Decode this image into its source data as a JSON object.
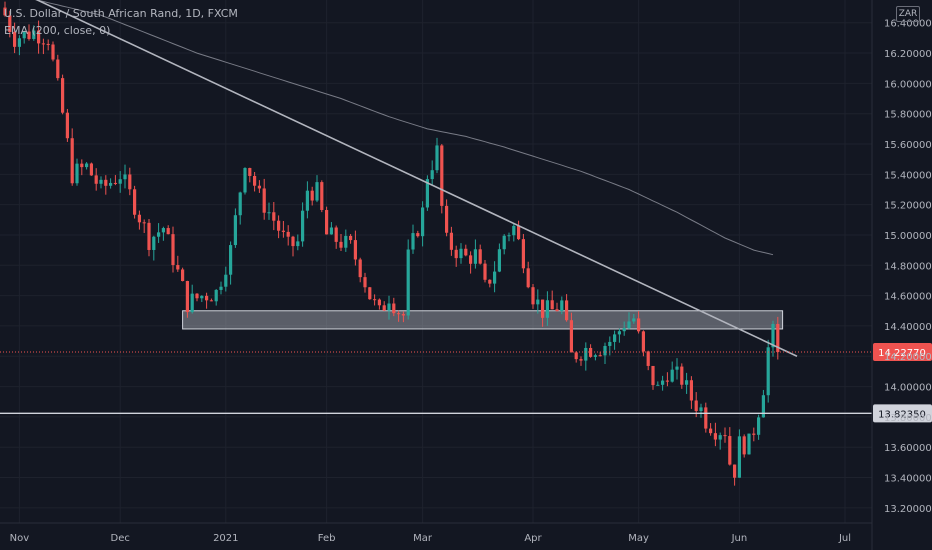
{
  "header": {
    "symbol_line": "U.S. Dollar / South African Rand, 1D, FXCM",
    "indicator_line": "EMA (200, close, 0)",
    "currency_badge": "ZAR"
  },
  "chart_data": {
    "type": "candlestick",
    "ylim": [
      13.1,
      16.55
    ],
    "y_ticks": [
      "16.40000",
      "16.20000",
      "16.00000",
      "15.80000",
      "15.60000",
      "15.40000",
      "15.20000",
      "15.00000",
      "14.80000",
      "14.60000",
      "14.40000",
      "14.20000",
      "14.00000",
      "13.80000",
      "13.60000",
      "13.40000",
      "13.20000"
    ],
    "x_ticks": [
      {
        "label": "Nov",
        "index": 3
      },
      {
        "label": "Dec",
        "index": 24
      },
      {
        "label": "2021",
        "index": 46
      },
      {
        "label": "Feb",
        "index": 67
      },
      {
        "label": "Mar",
        "index": 87
      },
      {
        "label": "Apr",
        "index": 110
      },
      {
        "label": "May",
        "index": 132
      },
      {
        "label": "Jun",
        "index": 153
      },
      {
        "label": "Jul",
        "index": 175
      }
    ],
    "bar_count": 176,
    "colors": {
      "up": "#26a69a",
      "down": "#ef5350",
      "background": "#131722",
      "ema": "#787b86",
      "trendline": "#b2b5be",
      "price_line": "#ef5350"
    },
    "price_path": [
      [
        0,
        16.45
      ],
      [
        2,
        16.3
      ],
      [
        6,
        16.34
      ],
      [
        9,
        16.3
      ],
      [
        12,
        15.8
      ],
      [
        14,
        15.4
      ],
      [
        17,
        15.45
      ],
      [
        20,
        15.3
      ],
      [
        24,
        15.4
      ],
      [
        27,
        15.2
      ],
      [
        30,
        14.97
      ],
      [
        33,
        15.05
      ],
      [
        36,
        14.75
      ],
      [
        38,
        14.55
      ],
      [
        41,
        14.6
      ],
      [
        44,
        14.62
      ],
      [
        47,
        14.9
      ],
      [
        50,
        15.5
      ],
      [
        53,
        15.25
      ],
      [
        56,
        15.1
      ],
      [
        59,
        14.92
      ],
      [
        61,
        14.95
      ],
      [
        63,
        15.3
      ],
      [
        65,
        15.28
      ],
      [
        67,
        15.0
      ],
      [
        69,
        14.97
      ],
      [
        72,
        14.92
      ],
      [
        74,
        14.78
      ],
      [
        76,
        14.6
      ],
      [
        78,
        14.48
      ],
      [
        80,
        14.6
      ],
      [
        82,
        14.5
      ],
      [
        83,
        14.47
      ],
      [
        84,
        14.85
      ],
      [
        86,
        15.05
      ],
      [
        87,
        15.15
      ],
      [
        88,
        15.4
      ],
      [
        90,
        15.55
      ],
      [
        91,
        15.18
      ],
      [
        92,
        14.95
      ],
      [
        94,
        14.9
      ],
      [
        96,
        14.85
      ],
      [
        98,
        14.87
      ],
      [
        100,
        14.65
      ],
      [
        102,
        14.78
      ],
      [
        104,
        15.0
      ],
      [
        106,
        15.05
      ],
      [
        108,
        14.85
      ],
      [
        110,
        14.6
      ],
      [
        112,
        14.5
      ],
      [
        114,
        14.5
      ],
      [
        116,
        14.55
      ],
      [
        118,
        14.2
      ],
      [
        121,
        14.25
      ],
      [
        124,
        14.26
      ],
      [
        127,
        14.32
      ],
      [
        129,
        14.42
      ],
      [
        131,
        14.45
      ],
      [
        133,
        14.2
      ],
      [
        134,
        14.1
      ],
      [
        136,
        13.98
      ],
      [
        138,
        14.1
      ],
      [
        141,
        14.05
      ],
      [
        143,
        13.92
      ],
      [
        145,
        13.85
      ],
      [
        146,
        13.78
      ],
      [
        148,
        13.72
      ],
      [
        150,
        13.71
      ],
      [
        151,
        13.5
      ],
      [
        152,
        13.45
      ],
      [
        153,
        13.62
      ],
      [
        155,
        13.62
      ],
      [
        156,
        13.72
      ],
      [
        157,
        13.85
      ],
      [
        158,
        14.0
      ],
      [
        159,
        14.25
      ],
      [
        160,
        14.35
      ],
      [
        161,
        14.227
      ]
    ],
    "ema_path": [
      [
        0,
        16.6
      ],
      [
        20,
        16.45
      ],
      [
        40,
        16.2
      ],
      [
        55,
        16.05
      ],
      [
        70,
        15.9
      ],
      [
        80,
        15.78
      ],
      [
        88,
        15.7
      ],
      [
        96,
        15.65
      ],
      [
        104,
        15.58
      ],
      [
        112,
        15.5
      ],
      [
        120,
        15.42
      ],
      [
        130,
        15.3
      ],
      [
        140,
        15.15
      ],
      [
        150,
        14.98
      ],
      [
        156,
        14.9
      ],
      [
        160,
        14.87
      ]
    ],
    "zone": {
      "x0": 37,
      "x1": 162,
      "y_low": 14.38,
      "y_high": 14.5
    },
    "trendline": {
      "x0": 0,
      "y0": 16.65,
      "x1": 165,
      "y1": 14.2
    },
    "support_level": {
      "value": 13.8235,
      "label": "13.82350"
    },
    "last_price": {
      "value": 14.2277,
      "label": "14.22770"
    }
  }
}
